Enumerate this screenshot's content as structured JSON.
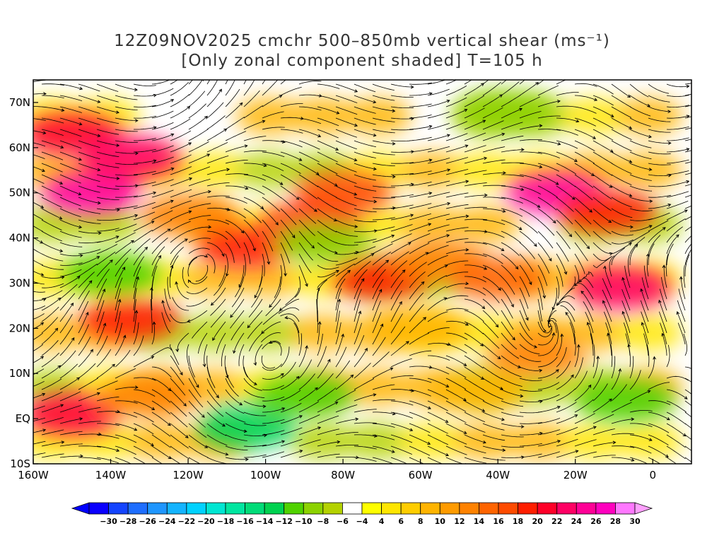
{
  "header": {
    "title_line1": "12Z09NOV2025 cmchr 500–850mb vertical shear (ms⁻¹)",
    "title_line2": "[Only zonal component shaded] T=105 h"
  },
  "map": {
    "projection": "lat-lon",
    "lon_range": [
      -160,
      10
    ],
    "lat_range": [
      -10,
      75
    ],
    "lat_ticks": [
      {
        "value": 70,
        "label": "70N"
      },
      {
        "value": 60,
        "label": "60N"
      },
      {
        "value": 50,
        "label": "50N"
      },
      {
        "value": 40,
        "label": "40N"
      },
      {
        "value": 30,
        "label": "30N"
      },
      {
        "value": 20,
        "label": "20N"
      },
      {
        "value": 10,
        "label": "10N"
      },
      {
        "value": 0,
        "label": "EQ"
      },
      {
        "value": -10,
        "label": "10S"
      }
    ],
    "lon_ticks": [
      {
        "value": -160,
        "label": "160W"
      },
      {
        "value": -140,
        "label": "140W"
      },
      {
        "value": -120,
        "label": "120W"
      },
      {
        "value": -100,
        "label": "100W"
      },
      {
        "value": -80,
        "label": "80W"
      },
      {
        "value": -60,
        "label": "60W"
      },
      {
        "value": -40,
        "label": "40W"
      },
      {
        "value": -20,
        "label": "20W"
      },
      {
        "value": 0,
        "label": "0"
      }
    ],
    "overlay": "streamlines",
    "shear_zones": [
      {
        "lon": -150,
        "lat": 63,
        "value": 22
      },
      {
        "lon": -145,
        "lat": 50,
        "value": 26
      },
      {
        "lon": -135,
        "lat": 58,
        "value": 24
      },
      {
        "lon": -120,
        "lat": 45,
        "value": 14
      },
      {
        "lon": -105,
        "lat": 38,
        "value": 20
      },
      {
        "lon": -88,
        "lat": 43,
        "value": 22
      },
      {
        "lon": -80,
        "lat": 50,
        "value": 18
      },
      {
        "lon": -70,
        "lat": 31,
        "value": 20
      },
      {
        "lon": -55,
        "lat": 35,
        "value": 14
      },
      {
        "lon": -40,
        "lat": 31,
        "value": 16
      },
      {
        "lon": -25,
        "lat": 50,
        "value": 26
      },
      {
        "lon": -12,
        "lat": 46,
        "value": 20
      },
      {
        "lon": -8,
        "lat": 29,
        "value": 24
      },
      {
        "lon": -135,
        "lat": 22,
        "value": 20
      },
      {
        "lon": -150,
        "lat": 1,
        "value": 22
      },
      {
        "lon": -130,
        "lat": 5,
        "value": 14
      },
      {
        "lon": -30,
        "lat": 14,
        "value": 14
      },
      {
        "lon": -60,
        "lat": 20,
        "value": 10
      },
      {
        "lon": -45,
        "lat": 6,
        "value": 10
      },
      {
        "lon": -140,
        "lat": 32,
        "value": -10
      },
      {
        "lon": -105,
        "lat": -2,
        "value": -12
      },
      {
        "lon": -90,
        "lat": 5,
        "value": -10
      },
      {
        "lon": -38,
        "lat": 68,
        "value": -8
      },
      {
        "lon": -7,
        "lat": 4,
        "value": -10
      },
      {
        "lon": -85,
        "lat": 39,
        "value": -8
      }
    ]
  },
  "colorbar": {
    "levels": [
      -30,
      -28,
      -26,
      -24,
      -22,
      -20,
      -18,
      -16,
      -14,
      -12,
      -10,
      -8,
      -6,
      -4,
      4,
      6,
      8,
      10,
      12,
      14,
      16,
      18,
      20,
      22,
      24,
      26,
      28,
      30
    ],
    "labels": [
      "−30",
      "−28",
      "−26",
      "−24",
      "−22",
      "−20",
      "−18",
      "−16",
      "−14",
      "−12",
      "−10",
      "−8",
      "−6",
      "−4",
      "4",
      "6",
      "8",
      "10",
      "12",
      "14",
      "16",
      "18",
      "20",
      "22",
      "24",
      "26",
      "28",
      "30"
    ],
    "colors": [
      "#0a00ff",
      "#1444ff",
      "#1e6eff",
      "#1e96ff",
      "#14b4ff",
      "#00d2ff",
      "#00e6d2",
      "#00e6a0",
      "#00dc78",
      "#00d250",
      "#50d200",
      "#8cd200",
      "#b4d200",
      "#ffffff",
      "#ffff00",
      "#ffe600",
      "#ffcd00",
      "#ffb400",
      "#ff9b00",
      "#ff8200",
      "#ff6400",
      "#ff4b00",
      "#ff1e00",
      "#ff0028",
      "#ff0064",
      "#ff0096",
      "#ff00be",
      "#ff78ff"
    ]
  }
}
